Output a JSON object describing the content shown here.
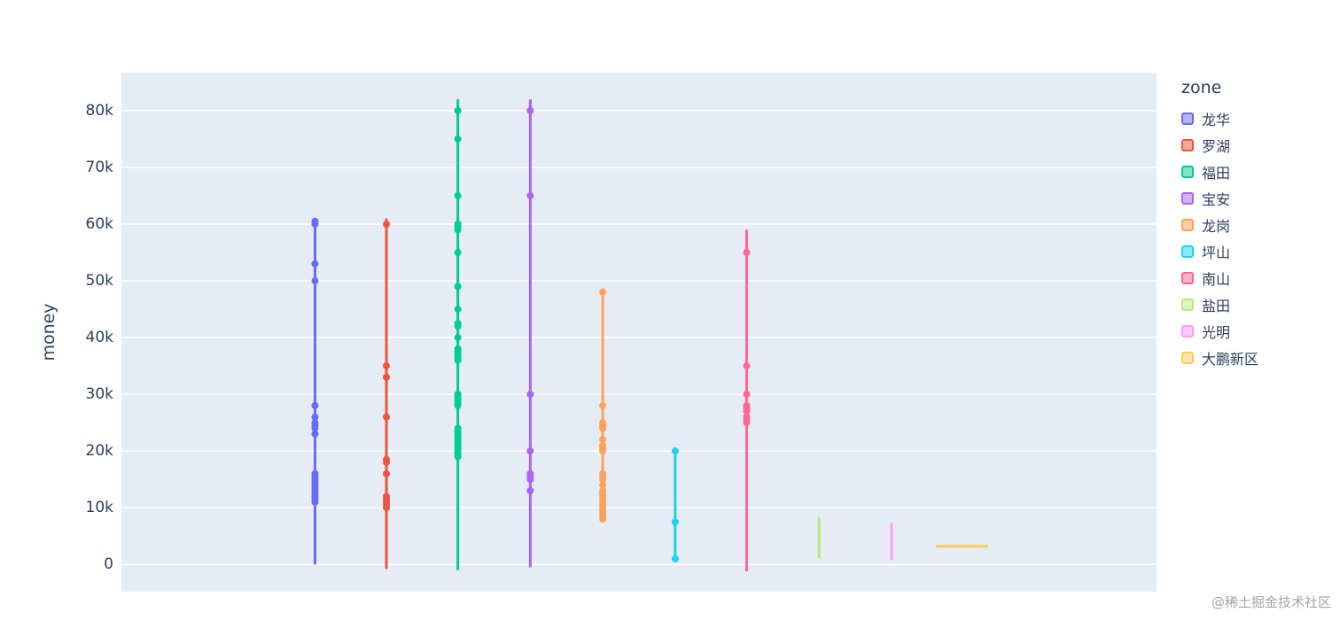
{
  "page": {
    "watermark": "@稀土掘金技术社区"
  },
  "chart_data": {
    "type": "scatter",
    "title": "",
    "ylabel": "money",
    "legend_title": "zone",
    "ylim": [
      -4800,
      86700
    ],
    "grid": true,
    "legend_position": "right",
    "plot_bg": "#E5ECF6",
    "grid_color": "#ffffff",
    "axis_text_color": "#2a3f5f",
    "yticks": [
      {
        "value": 0,
        "label": "0"
      },
      {
        "value": 10000,
        "label": "10k"
      },
      {
        "value": 20000,
        "label": "20k"
      },
      {
        "value": 30000,
        "label": "30k"
      },
      {
        "value": 40000,
        "label": "40k"
      },
      {
        "value": 50000,
        "label": "50k"
      },
      {
        "value": 60000,
        "label": "60k"
      },
      {
        "value": 70000,
        "label": "70k"
      },
      {
        "value": 80000,
        "label": "80k"
      }
    ],
    "series": [
      {
        "name": "龙华",
        "color": "#636EFA",
        "x_frac": 0.187,
        "range": [
          0,
          60800
        ],
        "points": [
          60500,
          60000,
          53000,
          50000,
          28000,
          26000,
          25000,
          24500,
          24000,
          23000,
          16000,
          15500,
          15000,
          14500,
          14000,
          13500,
          13000,
          12500,
          12000,
          11500,
          11000
        ]
      },
      {
        "name": "罗湖",
        "color": "#EF553B",
        "x_frac": 0.256,
        "range": [
          -800,
          61000
        ],
        "points": [
          60000,
          35000,
          33000,
          26000,
          18500,
          18000,
          16000,
          12000,
          11500,
          11000,
          10500,
          10000
        ]
      },
      {
        "name": "福田",
        "color": "#00CC96",
        "x_frac": 0.325,
        "range": [
          -1000,
          82000
        ],
        "points": [
          80000,
          75000,
          65000,
          60000,
          59500,
          59000,
          55000,
          49000,
          45000,
          42500,
          42000,
          40000,
          38000,
          37500,
          37000,
          36500,
          36000,
          30000,
          29500,
          29000,
          28500,
          28000,
          24000,
          23500,
          23000,
          22500,
          22000,
          21500,
          21000,
          20500,
          20000,
          19500,
          19000
        ]
      },
      {
        "name": "宝安",
        "color": "#AB63FA",
        "x_frac": 0.395,
        "range": [
          -500,
          82000
        ],
        "points": [
          80000,
          65000,
          30000,
          20000,
          16000,
          15500,
          15000,
          13000
        ]
      },
      {
        "name": "龙岗",
        "color": "#FFA15A",
        "x_frac": 0.465,
        "range": [
          7500,
          48700
        ],
        "points": [
          48000,
          28000,
          25000,
          24500,
          24000,
          22000,
          21000,
          20500,
          20000,
          16000,
          15500,
          15000,
          14000,
          13000,
          12500,
          12000,
          11500,
          11000,
          10500,
          10000,
          9500,
          9000,
          8500,
          8000
        ]
      },
      {
        "name": "坪山",
        "color": "#19D3F3",
        "x_frac": 0.535,
        "range": [
          500,
          20500
        ],
        "points": [
          20000,
          7500,
          1000
        ]
      },
      {
        "name": "南山",
        "color": "#FF6692",
        "x_frac": 0.604,
        "range": [
          -1200,
          59000
        ],
        "points": [
          55000,
          35000,
          30000,
          28000,
          27500,
          27000,
          26000,
          25500,
          25000
        ]
      },
      {
        "name": "盐田",
        "color": "#B6E880",
        "x_frac": 0.674,
        "range": [
          1100,
          8400
        ],
        "points": []
      },
      {
        "name": "光明",
        "color": "#FF97FF",
        "x_frac": 0.744,
        "range": [
          800,
          7300
        ],
        "points": []
      },
      {
        "name": "大鹏新区",
        "color": "#FECB52",
        "x_frac": 0.812,
        "hline": 3200,
        "hline_halfwidth_frac": 0.0253,
        "points": []
      }
    ]
  }
}
